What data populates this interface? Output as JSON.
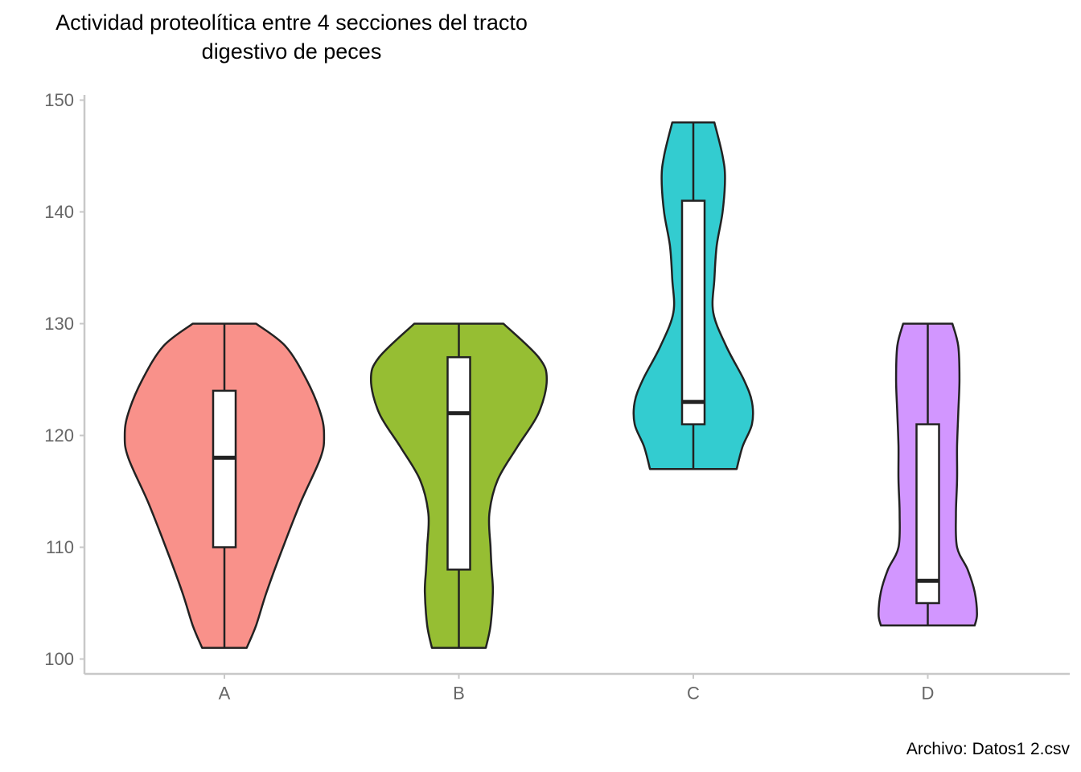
{
  "chart_data": {
    "type": "violin",
    "title": "Actividad proteolítica entre 4 secciones del tracto\ndigestivo de peces",
    "caption": "Archivo: Datos1 2.csv",
    "xlabel": "",
    "ylabel": "",
    "categories": [
      "A",
      "B",
      "C",
      "D"
    ],
    "ylim": [
      99,
      150.5
    ],
    "yticks": [
      100,
      110,
      120,
      130,
      140,
      150
    ],
    "grid": false,
    "colors": [
      "#F8766D",
      "#7CAE00",
      "#00BFC4",
      "#C77CFF"
    ],
    "box": [
      {
        "category": "A",
        "min": 101,
        "q1": 110,
        "median": 118,
        "q3": 124,
        "max": 130
      },
      {
        "category": "B",
        "min": 101,
        "q1": 108,
        "median": 122,
        "q3": 127,
        "max": 130
      },
      {
        "category": "C",
        "min": 117,
        "q1": 121,
        "median": 123,
        "q3": 141,
        "max": 148
      },
      {
        "category": "D",
        "min": 103,
        "q1": 105,
        "median": 107,
        "q3": 121,
        "max": 130
      }
    ],
    "violins": [
      {
        "category": "A",
        "y": [
          101,
          103,
          106,
          110,
          114,
          118,
          120,
          122,
          125,
          128,
          130
        ],
        "width": [
          0.19,
          0.27,
          0.36,
          0.5,
          0.65,
          0.82,
          0.85,
          0.82,
          0.7,
          0.52,
          0.27
        ]
      },
      {
        "category": "B",
        "y": [
          101,
          103,
          106,
          108,
          110,
          113,
          116,
          119,
          122,
          125,
          127,
          130
        ],
        "width": [
          0.23,
          0.27,
          0.29,
          0.28,
          0.27,
          0.26,
          0.33,
          0.5,
          0.68,
          0.75,
          0.68,
          0.38
        ]
      },
      {
        "category": "C",
        "y": [
          117,
          119,
          121,
          123,
          125,
          128,
          131,
          134,
          137,
          140,
          143,
          145,
          148
        ],
        "width": [
          0.37,
          0.42,
          0.5,
          0.5,
          0.43,
          0.28,
          0.17,
          0.18,
          0.2,
          0.25,
          0.27,
          0.25,
          0.18
        ]
      },
      {
        "category": "D",
        "y": [
          103,
          104,
          106,
          108,
          110,
          113,
          116,
          119,
          122,
          125,
          128,
          130
        ],
        "width": [
          0.4,
          0.42,
          0.4,
          0.34,
          0.25,
          0.24,
          0.25,
          0.25,
          0.26,
          0.27,
          0.26,
          0.21
        ]
      }
    ]
  }
}
